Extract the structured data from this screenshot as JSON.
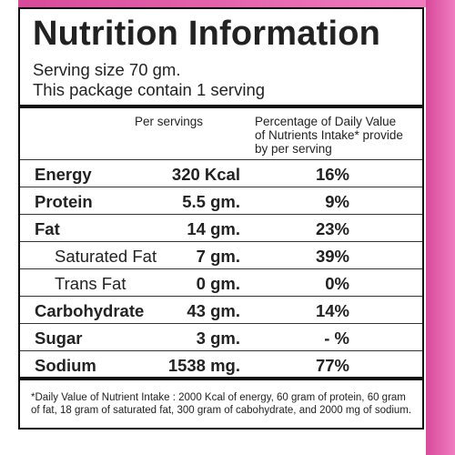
{
  "title": "Nutrition Information",
  "serving": [
    "Serving size 70 gm.",
    "This package contain 1 serving"
  ],
  "table": {
    "headers": [
      "Per servings",
      "Percentage of Daily Value of Nutrients Intake* provide by per serving"
    ],
    "rows": [
      [
        "Energy",
        "320 Kcal",
        "16%"
      ],
      [
        "Protein",
        "5.5 gm.",
        "9%"
      ],
      [
        "Fat",
        "14 gm.",
        "23%"
      ],
      [
        "Saturated Fat",
        "7 gm.",
        "39%"
      ],
      [
        "Trans Fat",
        "0 gm.",
        "0%"
      ],
      [
        "Carbohydrate",
        "43 gm.",
        "14%"
      ],
      [
        "Sugar",
        "3 gm.",
        "- %"
      ],
      [
        "Sodium",
        "1538 mg.",
        "77%"
      ]
    ]
  },
  "footnote": "*Daily Value of Nutrient Intake : 2000 Kcal of energy, 60 gram of protein, 60 gram of fat, 18 gram of saturated fat, 300 gram of cabohydrate, and 2000 mg of sodium."
}
